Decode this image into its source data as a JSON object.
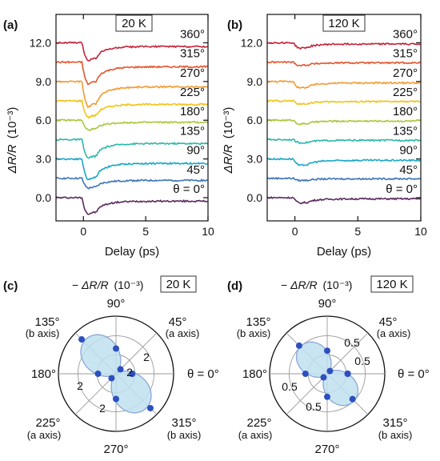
{
  "chart_data": [
    {
      "type": "line",
      "panel": "(a)",
      "temperature": "20 K",
      "xlabel": "Delay (ps)",
      "ylabel_italic": "ΔR/R",
      "ylabel_unit": "(10⁻³)",
      "xlim": [
        -2.2,
        10
      ],
      "ylim": [
        -1.8,
        14.2
      ],
      "xticks": [
        "0",
        "5",
        "10"
      ],
      "yticks": [
        "0.0",
        "3.0",
        "6.0",
        "9.0",
        "12.0"
      ],
      "series": [
        {
          "name": "θ = 0°",
          "color": "#5b2a5e",
          "offset": 0.0,
          "dip": 1.5
        },
        {
          "name": "45°",
          "color": "#3c74b8",
          "offset": 1.5,
          "dip": 0.9
        },
        {
          "name": "90°",
          "color": "#1aa7c7",
          "offset": 3.0,
          "dip": 1.9
        },
        {
          "name": "135°",
          "color": "#2bb8a8",
          "offset": 4.5,
          "dip": 1.7
        },
        {
          "name": "180°",
          "color": "#a7c83a",
          "offset": 6.0,
          "dip": 0.9
        },
        {
          "name": "225°",
          "color": "#f0c419",
          "offset": 7.5,
          "dip": 1.5
        },
        {
          "name": "270°",
          "color": "#f49a33",
          "offset": 9.0,
          "dip": 2.3
        },
        {
          "name": "315°",
          "color": "#e8542b",
          "offset": 10.5,
          "dip": 2.0
        },
        {
          "name": "360°",
          "color": "#c4233a",
          "offset": 12.0,
          "dip": 1.6
        }
      ]
    },
    {
      "type": "line",
      "panel": "(b)",
      "temperature": "120 K",
      "xlabel": "Delay (ps)",
      "ylabel_italic": "ΔR/R",
      "ylabel_unit": "(10⁻³)",
      "xlim": [
        -2.2,
        10
      ],
      "ylim": [
        -1.8,
        14.2
      ],
      "xticks": [
        "0",
        "5",
        "10"
      ],
      "yticks": [
        "0.0",
        "3.0",
        "6.0",
        "9.0",
        "12.0"
      ],
      "series": [
        {
          "name": "θ = 0°",
          "color": "#5b2a5e",
          "offset": 0.0,
          "dip": 0.5
        },
        {
          "name": "45°",
          "color": "#3c74b8",
          "offset": 1.5,
          "dip": 0.2
        },
        {
          "name": "90°",
          "color": "#1aa7c7",
          "offset": 3.0,
          "dip": 0.6
        },
        {
          "name": "135°",
          "color": "#2bb8a8",
          "offset": 4.5,
          "dip": 0.3
        },
        {
          "name": "180°",
          "color": "#a7c83a",
          "offset": 6.0,
          "dip": 0.35
        },
        {
          "name": "225°",
          "color": "#f0c419",
          "offset": 7.5,
          "dip": 0.3
        },
        {
          "name": "270°",
          "color": "#f49a33",
          "offset": 9.0,
          "dip": 0.6
        },
        {
          "name": "315°",
          "color": "#e8542b",
          "offset": 10.5,
          "dip": 0.3
        },
        {
          "name": "360°",
          "color": "#c4233a",
          "offset": 12.0,
          "dip": 0.5
        }
      ]
    },
    {
      "type": "scatter",
      "polar": true,
      "panel": "(c)",
      "temperature": "20 K",
      "title_prefix": "−",
      "title_italic": "ΔR/R",
      "title_unit": "(10⁻³)",
      "rmax": 3.2,
      "ring_labels": [
        "2",
        "2",
        "2",
        "2"
      ],
      "fill_color": "#bfe0ef",
      "point_color": "#2d4fbf",
      "points": [
        {
          "angle": 0,
          "r": 0.9
        },
        {
          "angle": 45,
          "r": 0.35
        },
        {
          "angle": 90,
          "r": 1.4
        },
        {
          "angle": 135,
          "r": 2.7
        },
        {
          "angle": 180,
          "r": 1.0
        },
        {
          "angle": 225,
          "r": 0.35
        },
        {
          "angle": 270,
          "r": 1.4
        },
        {
          "angle": 315,
          "r": 2.7
        },
        {
          "angle": 360,
          "r": 0.9
        }
      ],
      "angle_labels": {
        "a0": "θ = 0°",
        "a45": "45°",
        "a45_axis": "(a axis)",
        "a90": "90°",
        "a135": "135°",
        "a135_axis": "(b axis)",
        "a180": "180°",
        "a225": "225°",
        "a225_axis": "(a axis)",
        "a270": "270°",
        "a315": "315°",
        "a315_axis": "(b axis)"
      }
    },
    {
      "type": "scatter",
      "polar": true,
      "panel": "(d)",
      "temperature": "120 K",
      "title_prefix": "−",
      "title_italic": "ΔR/R",
      "title_unit": "(10⁻³)",
      "rmax": 0.9,
      "ring_labels": [
        "0.5",
        "0.5",
        "0.5",
        "0.5"
      ],
      "fill_color": "#bfe0ef",
      "point_color": "#2d4fbf",
      "points": [
        {
          "angle": 0,
          "r": 0.32
        },
        {
          "angle": 45,
          "r": 0.06
        },
        {
          "angle": 90,
          "r": 0.36
        },
        {
          "angle": 135,
          "r": 0.62
        },
        {
          "angle": 180,
          "r": 0.34
        },
        {
          "angle": 225,
          "r": 0.08
        },
        {
          "angle": 270,
          "r": 0.36
        },
        {
          "angle": 315,
          "r": 0.56
        },
        {
          "angle": 360,
          "r": 0.32
        }
      ],
      "angle_labels": {
        "a0": "θ = 0°",
        "a45": "45°",
        "a45_axis": "(a axis)",
        "a90": "90°",
        "a135": "135°",
        "a135_axis": "(b axis)",
        "a180": "180°",
        "a225": "225°",
        "a225_axis": "(a axis)",
        "a270": "270°",
        "a315": "315°",
        "a315_axis": "(b axis)"
      }
    }
  ]
}
